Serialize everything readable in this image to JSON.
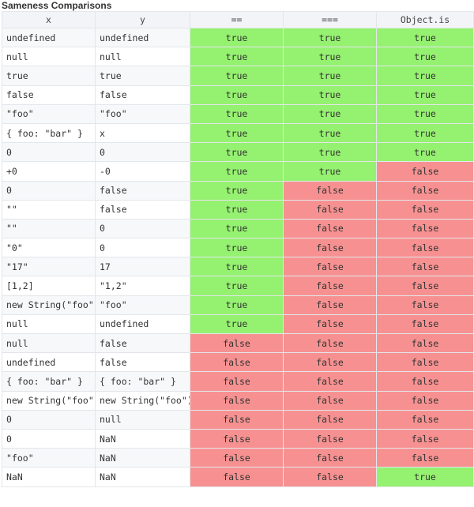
{
  "title": "Sameness Comparisons",
  "headers": [
    "x",
    "y",
    "==",
    "===",
    "Object.is"
  ],
  "rows": [
    {
      "x": "undefined",
      "y": "undefined",
      "loose": "true",
      "strict": "true",
      "is": "true"
    },
    {
      "x": "null",
      "y": "null",
      "loose": "true",
      "strict": "true",
      "is": "true"
    },
    {
      "x": "true",
      "y": "true",
      "loose": "true",
      "strict": "true",
      "is": "true"
    },
    {
      "x": "false",
      "y": "false",
      "loose": "true",
      "strict": "true",
      "is": "true"
    },
    {
      "x": "\"foo\"",
      "y": "\"foo\"",
      "loose": "true",
      "strict": "true",
      "is": "true"
    },
    {
      "x": "{ foo: \"bar\" }",
      "y": "x",
      "loose": "true",
      "strict": "true",
      "is": "true"
    },
    {
      "x": "0",
      "y": "0",
      "loose": "true",
      "strict": "true",
      "is": "true"
    },
    {
      "x": "+0",
      "y": "-0",
      "loose": "true",
      "strict": "true",
      "is": "false"
    },
    {
      "x": "0",
      "y": "false",
      "loose": "true",
      "strict": "false",
      "is": "false"
    },
    {
      "x": "\"\"",
      "y": "false",
      "loose": "true",
      "strict": "false",
      "is": "false"
    },
    {
      "x": "\"\"",
      "y": "0",
      "loose": "true",
      "strict": "false",
      "is": "false"
    },
    {
      "x": "\"0\"",
      "y": "0",
      "loose": "true",
      "strict": "false",
      "is": "false"
    },
    {
      "x": "\"17\"",
      "y": "17",
      "loose": "true",
      "strict": "false",
      "is": "false"
    },
    {
      "x": "[1,2]",
      "y": "\"1,2\"",
      "loose": "true",
      "strict": "false",
      "is": "false"
    },
    {
      "x": "new String(\"foo\")",
      "y": "\"foo\"",
      "loose": "true",
      "strict": "false",
      "is": "false"
    },
    {
      "x": "null",
      "y": "undefined",
      "loose": "true",
      "strict": "false",
      "is": "false"
    },
    {
      "x": "null",
      "y": "false",
      "loose": "false",
      "strict": "false",
      "is": "false"
    },
    {
      "x": "undefined",
      "y": "false",
      "loose": "false",
      "strict": "false",
      "is": "false"
    },
    {
      "x": "{ foo: \"bar\" }",
      "y": "{ foo: \"bar\" }",
      "loose": "false",
      "strict": "false",
      "is": "false"
    },
    {
      "x": "new String(\"foo\")",
      "y": "new String(\"foo\")",
      "loose": "false",
      "strict": "false",
      "is": "false"
    },
    {
      "x": "0",
      "y": "null",
      "loose": "false",
      "strict": "false",
      "is": "false"
    },
    {
      "x": "0",
      "y": "NaN",
      "loose": "false",
      "strict": "false",
      "is": "false"
    },
    {
      "x": "\"foo\"",
      "y": "NaN",
      "loose": "false",
      "strict": "false",
      "is": "false"
    },
    {
      "x": "NaN",
      "y": "NaN",
      "loose": "false",
      "strict": "false",
      "is": "true"
    }
  ],
  "colors": {
    "true_cell": "#95f170",
    "false_cell": "#f79191"
  }
}
